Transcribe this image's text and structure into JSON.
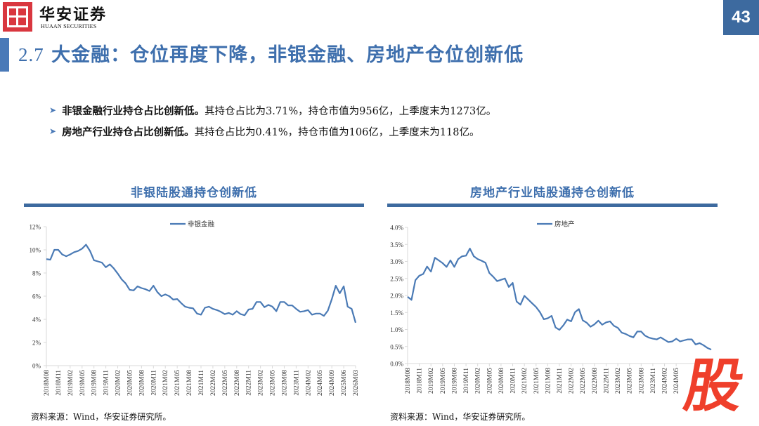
{
  "header": {
    "brand_cn": "华安证券",
    "brand_en": "HUAAN SECURITIES",
    "page_number": "43",
    "accent_color": "#3d6a9f",
    "logo_color": "#d9373f"
  },
  "title": {
    "number": "2.7",
    "text": " 大金融：仓位再度下降，非银金融、房地产仓位创新低"
  },
  "bullets": [
    {
      "strong": "非银金融行业持仓占比创新低。",
      "text": "其持仓占比为3.71%，持仓市值为956亿，上季度末为1273亿。"
    },
    {
      "strong": "房地产行业持仓占比创新低。",
      "text": "其持仓占比为0.41%，持仓市值为106亿，上季度末为118亿。"
    }
  ],
  "charts": {
    "left": {
      "title": "非银陆股通持仓创新低",
      "source": "资料来源：Wind，华安证券研究所。"
    },
    "right": {
      "title": "房地产行业陆股通持仓创新低",
      "source": "资料来源：Wind，华安证券研究所。"
    }
  },
  "watermark": "股",
  "chart_data": [
    {
      "type": "line",
      "title": "非银陆股通持仓创新低",
      "xlabel": "",
      "ylabel": "",
      "ylim": [
        0,
        12
      ],
      "yticks": [
        "0%",
        "2%",
        "4%",
        "6%",
        "8%",
        "10%",
        "12%"
      ],
      "ytick_values": [
        0,
        2,
        4,
        6,
        8,
        10,
        12
      ],
      "xtick_labels": [
        "2018M08",
        "2018M11",
        "2019M02",
        "2019M05",
        "2019M08",
        "2019M11",
        "2020M02",
        "2020M05",
        "2020M08",
        "2020M11",
        "2021M02",
        "2021M05",
        "2021M08",
        "2021M11",
        "2022M02",
        "2022M05",
        "2022M08",
        "2022M11",
        "2023M02",
        "2023M05",
        "2023M08",
        "2023M11",
        "2024M02",
        "2024M05",
        "2024M09",
        "2025M06",
        "2026M03"
      ],
      "legend": {
        "position": "top-center",
        "entries": [
          "非银金融"
        ]
      },
      "grid": false,
      "color": "#4a7ab5",
      "series": [
        {
          "name": "非银金融",
          "values": [
            9.2,
            9.15,
            10.0,
            10.0,
            9.6,
            9.45,
            9.6,
            9.8,
            9.9,
            10.1,
            10.45,
            9.9,
            9.1,
            9.0,
            8.9,
            8.5,
            8.75,
            8.4,
            7.95,
            7.45,
            7.1,
            6.55,
            6.5,
            6.85,
            6.7,
            6.6,
            6.45,
            6.9,
            6.35,
            6.0,
            6.15,
            6.0,
            5.7,
            5.75,
            5.4,
            5.1,
            5.0,
            4.95,
            4.5,
            4.4,
            5.0,
            5.1,
            4.9,
            4.8,
            4.65,
            4.45,
            4.55,
            4.4,
            4.7,
            4.45,
            4.35,
            4.85,
            4.9,
            5.5,
            5.5,
            5.05,
            5.25,
            5.1,
            4.7,
            5.5,
            5.5,
            5.2,
            5.2,
            4.9,
            4.65,
            4.7,
            4.8,
            4.4,
            4.5,
            4.5,
            4.3,
            4.75,
            5.75,
            6.9,
            6.25,
            6.85,
            5.1,
            4.9,
            3.71
          ]
        }
      ]
    },
    {
      "type": "line",
      "title": "房地产行业陆股通持仓创新低",
      "xlabel": "",
      "ylabel": "",
      "ylim": [
        0,
        4
      ],
      "yticks": [
        "0.0%",
        "0.5%",
        "1.0%",
        "1.5%",
        "2.0%",
        "2.5%",
        "3.0%",
        "3.5%",
        "4.0%"
      ],
      "ytick_values": [
        0,
        0.5,
        1.0,
        1.5,
        2.0,
        2.5,
        3.0,
        3.5,
        4.0
      ],
      "xtick_labels": [
        "2018M08",
        "2018M11",
        "2019M02",
        "2019M05",
        "2019M08",
        "2019M11",
        "2020M02",
        "2020M05",
        "2020M08",
        "2020M11",
        "2021M02",
        "2021M05",
        "2021M08",
        "2021M11",
        "2022M02",
        "2022M05",
        "2022M08",
        "2022M11",
        "2023M02",
        "2023M05",
        "2023M08",
        "2023M11",
        "2024M02",
        "2024M05"
      ],
      "legend": {
        "position": "top-center",
        "entries": [
          "房地产"
        ]
      },
      "grid": false,
      "color": "#4a7ab5",
      "series": [
        {
          "name": "房地产",
          "values": [
            1.96,
            1.87,
            2.45,
            2.58,
            2.63,
            2.85,
            2.7,
            3.11,
            3.03,
            2.95,
            2.84,
            3.03,
            2.84,
            3.07,
            3.15,
            3.17,
            3.38,
            3.15,
            3.07,
            3.02,
            2.96,
            2.66,
            2.55,
            2.42,
            2.46,
            2.5,
            2.25,
            2.37,
            1.82,
            1.73,
            1.99,
            1.88,
            1.77,
            1.66,
            1.51,
            1.3,
            1.33,
            1.4,
            1.06,
            0.99,
            1.12,
            1.29,
            1.24,
            1.51,
            1.6,
            1.27,
            1.2,
            1.08,
            1.15,
            1.26,
            1.14,
            1.21,
            1.24,
            1.11,
            1.05,
            0.91,
            0.87,
            0.81,
            0.77,
            0.94,
            0.94,
            0.82,
            0.76,
            0.73,
            0.71,
            0.77,
            0.7,
            0.63,
            0.65,
            0.73,
            0.65,
            0.68,
            0.71,
            0.71,
            0.56,
            0.6,
            0.54,
            0.46,
            0.41
          ]
        }
      ]
    }
  ]
}
